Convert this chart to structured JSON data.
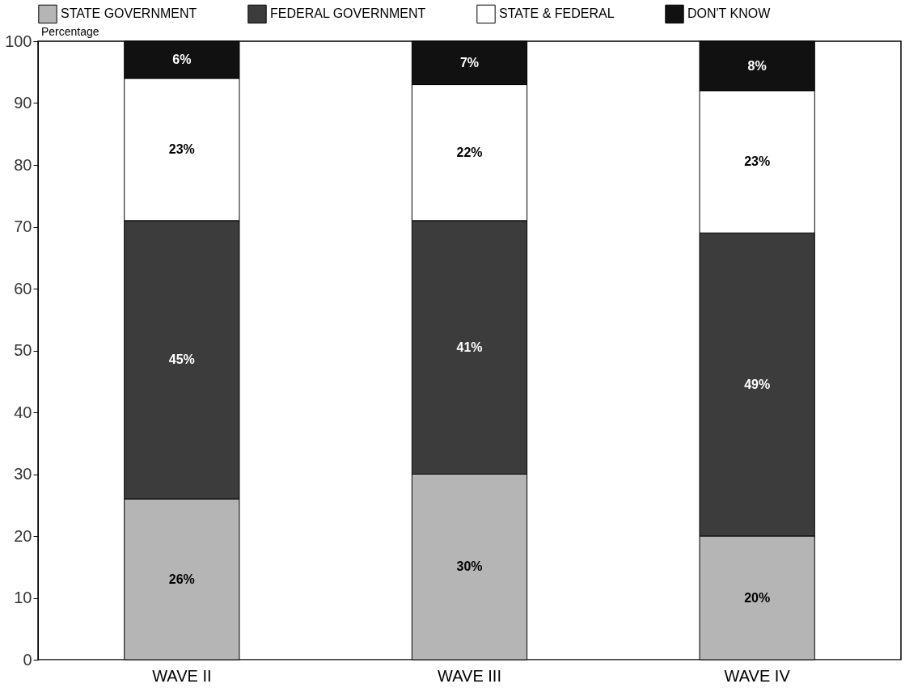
{
  "chart_data": {
    "type": "bar",
    "stacked": true,
    "ylabel": "Percentage",
    "categories": [
      "WAVE II",
      "WAVE III",
      "WAVE IV"
    ],
    "ylim": [
      0,
      100
    ],
    "yticks": [
      0,
      10,
      20,
      30,
      40,
      50,
      60,
      70,
      80,
      90,
      100
    ],
    "grid": false,
    "legend": "top",
    "series": [
      {
        "name": "STATE GOVERNMENT",
        "color": "#b5b5b5",
        "values": [
          26,
          30,
          20
        ],
        "value_labels": [
          "26%",
          "30%",
          "20%"
        ]
      },
      {
        "name": "FEDERAL GOVERNMENT",
        "color": "#3c3c3c",
        "values": [
          45,
          41,
          49
        ],
        "value_labels": [
          "45%",
          "41%",
          "49%"
        ]
      },
      {
        "name": "STATE & FEDERAL",
        "color": "#ffffff",
        "values": [
          23,
          22,
          23
        ],
        "value_labels": [
          "23%",
          "22%",
          "23%"
        ]
      },
      {
        "name": "DON'T KNOW",
        "color": "#111111",
        "values": [
          6,
          7,
          8
        ],
        "value_labels": [
          "6%",
          "7%",
          "8%"
        ]
      }
    ]
  }
}
